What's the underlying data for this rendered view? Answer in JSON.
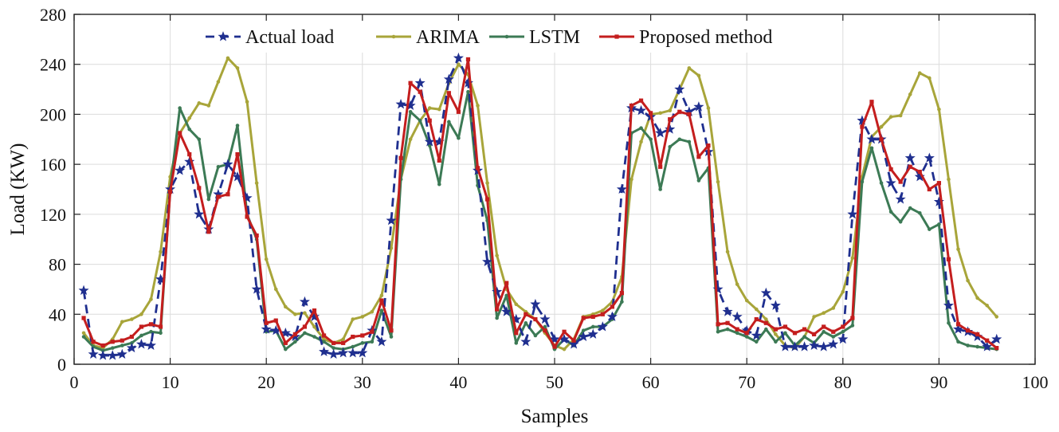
{
  "chart_data": {
    "type": "line",
    "title": "",
    "xlabel": "Samples",
    "ylabel": "Load (KW)",
    "xlim": [
      0,
      100
    ],
    "ylim": [
      0,
      280
    ],
    "xticks": [
      0,
      10,
      20,
      30,
      40,
      50,
      60,
      70,
      80,
      90,
      100
    ],
    "yticks": [
      0,
      40,
      80,
      120,
      160,
      200,
      240,
      280
    ],
    "grid": true,
    "legend_position": "top",
    "x": [
      1,
      2,
      3,
      4,
      5,
      6,
      7,
      8,
      9,
      10,
      11,
      12,
      13,
      14,
      15,
      16,
      17,
      18,
      19,
      20,
      21,
      22,
      23,
      24,
      25,
      26,
      27,
      28,
      29,
      30,
      31,
      32,
      33,
      34,
      35,
      36,
      37,
      38,
      39,
      40,
      41,
      42,
      43,
      44,
      45,
      46,
      47,
      48,
      49,
      50,
      51,
      52,
      53,
      54,
      55,
      56,
      57,
      58,
      59,
      60,
      61,
      62,
      63,
      64,
      65,
      66,
      67,
      68,
      69,
      70,
      71,
      72,
      73,
      74,
      75,
      76,
      77,
      78,
      79,
      80,
      81,
      82,
      83,
      84,
      85,
      86,
      87,
      88,
      89,
      90,
      91,
      92,
      93,
      94,
      95,
      96
    ],
    "series": [
      {
        "name": "Actual load",
        "color": "#1f2f8f",
        "style": "dashed",
        "marker": "star",
        "values": [
          59,
          8,
          7,
          7,
          8,
          13,
          16,
          15,
          68,
          140,
          155,
          162,
          120,
          108,
          136,
          160,
          150,
          133,
          60,
          28,
          27,
          25,
          22,
          50,
          38,
          10,
          8,
          9,
          9,
          9,
          27,
          18,
          115,
          208,
          207,
          225,
          178,
          178,
          228,
          245,
          225,
          155,
          82,
          58,
          42,
          36,
          18,
          48,
          36,
          20,
          20,
          16,
          22,
          24,
          30,
          38,
          140,
          205,
          203,
          198,
          185,
          188,
          220,
          202,
          206,
          170,
          60,
          42,
          38,
          27,
          23,
          57,
          47,
          14,
          14,
          14,
          15,
          14,
          16,
          20,
          120,
          195,
          180,
          180,
          145,
          132,
          165,
          150,
          165,
          130,
          47,
          28,
          26,
          22,
          14,
          20
        ]
      },
      {
        "name": "ARIMA",
        "color": "#a8a53a",
        "style": "solid",
        "marker": "dot",
        "values": [
          25,
          15,
          13,
          20,
          34,
          36,
          40,
          52,
          90,
          150,
          185,
          197,
          209,
          207,
          226,
          245,
          237,
          210,
          145,
          84,
          60,
          46,
          40,
          41,
          30,
          20,
          17,
          20,
          36,
          38,
          42,
          55,
          93,
          148,
          180,
          195,
          205,
          204,
          225,
          240,
          232,
          207,
          145,
          87,
          60,
          48,
          42,
          36,
          25,
          15,
          12,
          20,
          38,
          40,
          43,
          50,
          70,
          148,
          178,
          200,
          201,
          203,
          220,
          237,
          231,
          205,
          146,
          90,
          64,
          51,
          44,
          36,
          24,
          15,
          13,
          22,
          38,
          41,
          45,
          58,
          85,
          150,
          182,
          190,
          198,
          199,
          216,
          233,
          229,
          204,
          148,
          92,
          67,
          53,
          47,
          38
        ]
      },
      {
        "name": "LSTM",
        "color": "#3c7a55",
        "style": "solid",
        "marker": "dot",
        "values": [
          22,
          14,
          11,
          13,
          15,
          17,
          23,
          26,
          25,
          140,
          205,
          188,
          180,
          132,
          158,
          160,
          191,
          120,
          100,
          26,
          27,
          12,
          18,
          25,
          22,
          18,
          13,
          12,
          14,
          17,
          18,
          43,
          22,
          148,
          202,
          195,
          175,
          144,
          194,
          181,
          218,
          143,
          115,
          37,
          55,
          17,
          33,
          23,
          30,
          12,
          20,
          15,
          27,
          30,
          30,
          36,
          50,
          185,
          189,
          180,
          140,
          174,
          180,
          178,
          147,
          157,
          26,
          28,
          25,
          22,
          18,
          28,
          18,
          25,
          15,
          22,
          17,
          26,
          22,
          26,
          31,
          146,
          173,
          145,
          122,
          114,
          125,
          121,
          108,
          112,
          33,
          18,
          15,
          14,
          13,
          12
        ]
      },
      {
        "name": "Proposed method",
        "color": "#c41e1e",
        "style": "solid",
        "marker": "square",
        "values": [
          37,
          18,
          15,
          18,
          19,
          22,
          30,
          32,
          30,
          138,
          185,
          168,
          141,
          106,
          134,
          136,
          168,
          118,
          103,
          33,
          35,
          17,
          24,
          30,
          43,
          23,
          17,
          17,
          22,
          23,
          26,
          51,
          27,
          165,
          225,
          218,
          195,
          163,
          217,
          202,
          244,
          157,
          132,
          44,
          65,
          25,
          40,
          36,
          27,
          14,
          26,
          19,
          37,
          38,
          40,
          46,
          57,
          207,
          211,
          201,
          158,
          196,
          202,
          200,
          166,
          175,
          32,
          33,
          28,
          25,
          36,
          33,
          28,
          30,
          25,
          28,
          24,
          30,
          26,
          30,
          37,
          190,
          210,
          180,
          156,
          146,
          158,
          154,
          140,
          145,
          84,
          32,
          27,
          24,
          19,
          13
        ]
      }
    ]
  }
}
